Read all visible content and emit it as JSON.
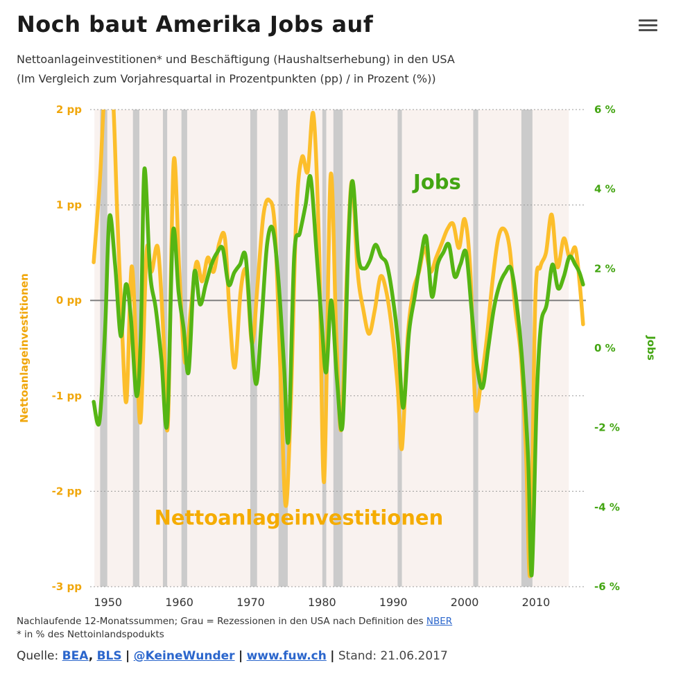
{
  "header": {
    "title": "Noch baut Amerika Jobs auf",
    "subtitle_line1": "Nettoanlageinvestitionen* und Beschäftigung (Haushaltserhebung) in den USA",
    "subtitle_line2": "(Im Vergleich zum Vorjahresquartal in Prozentpunkten (pp) / in Prozent (%))"
  },
  "chart_data": {
    "type": "line",
    "title": "Noch baut Amerika Jobs auf",
    "x_axis": {
      "range": [
        1947.5,
        2017
      ],
      "ticks": [
        1950,
        1960,
        1970,
        1980,
        1990,
        2000,
        2010
      ]
    },
    "y_axis_left": {
      "label": "Nettoanlageinvestitionen",
      "unit": "pp",
      "range": [
        2,
        -3
      ],
      "values": [
        2,
        1,
        0,
        -1,
        -2,
        -3
      ],
      "ticks": [
        "2 pp",
        "1 pp",
        "0 pp",
        "-1 pp",
        "-2 pp",
        "-3 pp"
      ],
      "color": "#F0A60A"
    },
    "y_axis_right": {
      "label": "Jobs",
      "unit": "%",
      "range": [
        6,
        -6
      ],
      "values": [
        6,
        4,
        2,
        0,
        -2,
        -4,
        -6
      ],
      "ticks": [
        "6 %",
        "4 %",
        "2 %",
        "0 %",
        "-2 %",
        "-4 %",
        "-6 %"
      ],
      "color": "#43A512"
    },
    "colors": {
      "investment_line": "#FCBE2B",
      "jobs_line": "#55B514",
      "investment_label": "#F5AC00",
      "jobs_label": "#43A512",
      "recession": "#CBCBCB",
      "plot_bg": "#F9F2EF",
      "grid": "#9A9A9A",
      "zero_line": "#808080"
    },
    "plot_shading": {
      "from": 1948.1,
      "to": 2014.6
    },
    "recessions": [
      [
        1948.9,
        1949.9
      ],
      [
        1953.5,
        1954.4
      ],
      [
        1957.7,
        1958.3
      ],
      [
        1960.3,
        1961.1
      ],
      [
        1969.95,
        1970.9
      ],
      [
        1973.9,
        1975.2
      ],
      [
        1980.05,
        1980.6
      ],
      [
        1981.6,
        1982.9
      ],
      [
        1990.6,
        1991.2
      ],
      [
        2001.2,
        2001.9
      ],
      [
        2007.95,
        2009.5
      ]
    ],
    "series": [
      {
        "name": "Nettoanlageinvestitionen",
        "axis": "left",
        "unit": "pp",
        "color": "#FCBE2B",
        "points": [
          [
            1948.0,
            0.4
          ],
          [
            1948.9,
            1.3
          ],
          [
            1949.6,
            2.25
          ],
          [
            1950.6,
            2.25
          ],
          [
            1951.3,
            0.9
          ],
          [
            1952.0,
            -0.35
          ],
          [
            1952.6,
            -1.05
          ],
          [
            1953.3,
            0.35
          ],
          [
            1954.0,
            -0.55
          ],
          [
            1954.6,
            -1.25
          ],
          [
            1955.4,
            0.5
          ],
          [
            1956.1,
            0.3
          ],
          [
            1957.0,
            0.55
          ],
          [
            1957.8,
            -0.4
          ],
          [
            1958.4,
            -1.3
          ],
          [
            1959.2,
            1.45
          ],
          [
            1960.0,
            0.3
          ],
          [
            1960.8,
            -0.65
          ],
          [
            1961.6,
            -0.1
          ],
          [
            1962.4,
            0.4
          ],
          [
            1963.2,
            0.2
          ],
          [
            1964.0,
            0.45
          ],
          [
            1964.8,
            0.3
          ],
          [
            1965.6,
            0.6
          ],
          [
            1966.4,
            0.65
          ],
          [
            1967.1,
            -0.2
          ],
          [
            1967.8,
            -0.7
          ],
          [
            1968.6,
            0.1
          ],
          [
            1969.4,
            0.3
          ],
          [
            1970.2,
            -0.45
          ],
          [
            1971.0,
            0.2
          ],
          [
            1971.8,
            0.9
          ],
          [
            1972.6,
            1.05
          ],
          [
            1973.4,
            0.75
          ],
          [
            1974.2,
            -0.8
          ],
          [
            1974.9,
            -2.15
          ],
          [
            1975.6,
            -1.15
          ],
          [
            1976.4,
            0.9
          ],
          [
            1977.2,
            1.5
          ],
          [
            1978.0,
            1.35
          ],
          [
            1978.8,
            1.95
          ],
          [
            1979.6,
            0.55
          ],
          [
            1980.3,
            -1.9
          ],
          [
            1981.2,
            1.3
          ],
          [
            1982.0,
            -0.35
          ],
          [
            1982.7,
            -1.35
          ],
          [
            1983.5,
            0.3
          ],
          [
            1984.2,
            1.25
          ],
          [
            1985.0,
            0.3
          ],
          [
            1985.8,
            -0.1
          ],
          [
            1986.6,
            -0.35
          ],
          [
            1987.4,
            -0.1
          ],
          [
            1988.2,
            0.25
          ],
          [
            1989.0,
            0.1
          ],
          [
            1989.8,
            -0.3
          ],
          [
            1990.6,
            -0.9
          ],
          [
            1991.2,
            -1.55
          ],
          [
            1992.0,
            -0.4
          ],
          [
            1992.8,
            0.1
          ],
          [
            1993.6,
            0.3
          ],
          [
            1994.4,
            0.55
          ],
          [
            1995.2,
            0.3
          ],
          [
            1996.0,
            0.45
          ],
          [
            1996.8,
            0.6
          ],
          [
            1997.6,
            0.75
          ],
          [
            1998.4,
            0.8
          ],
          [
            1999.2,
            0.55
          ],
          [
            2000.0,
            0.85
          ],
          [
            2000.8,
            0.3
          ],
          [
            2001.5,
            -1.1
          ],
          [
            2002.3,
            -0.85
          ],
          [
            2003.1,
            -0.4
          ],
          [
            2003.9,
            0.2
          ],
          [
            2004.7,
            0.65
          ],
          [
            2005.5,
            0.75
          ],
          [
            2006.3,
            0.55
          ],
          [
            2007.1,
            -0.1
          ],
          [
            2007.9,
            -0.6
          ],
          [
            2008.6,
            -1.6
          ],
          [
            2009.2,
            -2.85
          ],
          [
            2009.9,
            0.0
          ],
          [
            2010.6,
            0.35
          ],
          [
            2011.4,
            0.5
          ],
          [
            2012.2,
            0.9
          ],
          [
            2013.0,
            0.35
          ],
          [
            2013.9,
            0.65
          ],
          [
            2014.7,
            0.45
          ],
          [
            2015.5,
            0.55
          ],
          [
            2016.1,
            0.2
          ],
          [
            2016.6,
            -0.25
          ]
        ]
      },
      {
        "name": "Jobs",
        "axis": "right",
        "unit": "%",
        "color": "#55B514",
        "points": [
          [
            1948.0,
            -1.35
          ],
          [
            1948.8,
            -1.85
          ],
          [
            1949.6,
            0.5
          ],
          [
            1950.2,
            3.3
          ],
          [
            1951.0,
            2.1
          ],
          [
            1951.8,
            0.3
          ],
          [
            1952.5,
            1.6
          ],
          [
            1953.2,
            0.8
          ],
          [
            1954.0,
            -1.2
          ],
          [
            1954.6,
            0.3
          ],
          [
            1955.1,
            4.5
          ],
          [
            1955.9,
            1.9
          ],
          [
            1956.7,
            1.0
          ],
          [
            1957.5,
            -0.3
          ],
          [
            1958.3,
            -1.9
          ],
          [
            1959.1,
            2.9
          ],
          [
            1959.9,
            1.4
          ],
          [
            1960.6,
            0.5
          ],
          [
            1961.3,
            -0.6
          ],
          [
            1962.1,
            1.9
          ],
          [
            1962.9,
            1.1
          ],
          [
            1963.7,
            1.6
          ],
          [
            1964.5,
            2.1
          ],
          [
            1965.3,
            2.4
          ],
          [
            1966.1,
            2.5
          ],
          [
            1966.9,
            1.6
          ],
          [
            1967.7,
            1.9
          ],
          [
            1968.5,
            2.1
          ],
          [
            1969.3,
            2.3
          ],
          [
            1970.1,
            0.3
          ],
          [
            1970.8,
            -0.9
          ],
          [
            1971.5,
            0.6
          ],
          [
            1972.3,
            2.6
          ],
          [
            1973.1,
            3.0
          ],
          [
            1973.9,
            1.7
          ],
          [
            1974.7,
            -0.5
          ],
          [
            1975.3,
            -2.3
          ],
          [
            1976.1,
            2.3
          ],
          [
            1976.9,
            2.9
          ],
          [
            1977.7,
            3.6
          ],
          [
            1978.4,
            4.3
          ],
          [
            1979.2,
            2.5
          ],
          [
            1980.0,
            0.5
          ],
          [
            1980.6,
            -0.6
          ],
          [
            1981.3,
            1.2
          ],
          [
            1982.1,
            -0.8
          ],
          [
            1982.9,
            -1.9
          ],
          [
            1983.7,
            2.6
          ],
          [
            1984.3,
            4.2
          ],
          [
            1985.1,
            2.3
          ],
          [
            1985.9,
            2.0
          ],
          [
            1986.7,
            2.2
          ],
          [
            1987.5,
            2.6
          ],
          [
            1988.3,
            2.3
          ],
          [
            1989.1,
            2.1
          ],
          [
            1989.9,
            1.3
          ],
          [
            1990.7,
            0.1
          ],
          [
            1991.4,
            -1.5
          ],
          [
            1992.2,
            0.4
          ],
          [
            1993.0,
            1.3
          ],
          [
            1993.8,
            2.2
          ],
          [
            1994.6,
            2.8
          ],
          [
            1995.4,
            1.3
          ],
          [
            1996.2,
            2.1
          ],
          [
            1997.0,
            2.4
          ],
          [
            1997.8,
            2.6
          ],
          [
            1998.6,
            1.8
          ],
          [
            1999.4,
            2.1
          ],
          [
            2000.2,
            2.4
          ],
          [
            2001.0,
            0.9
          ],
          [
            2001.7,
            -0.4
          ],
          [
            2002.5,
            -1.0
          ],
          [
            2003.3,
            0.0
          ],
          [
            2004.1,
            1.0
          ],
          [
            2004.9,
            1.6
          ],
          [
            2005.7,
            1.9
          ],
          [
            2006.5,
            2.0
          ],
          [
            2007.3,
            1.1
          ],
          [
            2008.1,
            -0.4
          ],
          [
            2008.9,
            -2.8
          ],
          [
            2009.4,
            -5.7
          ],
          [
            2010.1,
            -1.3
          ],
          [
            2010.7,
            0.6
          ],
          [
            2011.5,
            1.1
          ],
          [
            2012.3,
            2.1
          ],
          [
            2013.1,
            1.5
          ],
          [
            2013.9,
            1.8
          ],
          [
            2014.7,
            2.3
          ],
          [
            2015.5,
            2.1
          ],
          [
            2016.1,
            1.9
          ],
          [
            2016.6,
            1.6
          ]
        ]
      }
    ],
    "annotations": [
      {
        "text": "Jobs",
        "axis": "right",
        "year": 1992.8,
        "value": 4.0,
        "color": "#43A512",
        "size": 29
      },
      {
        "text": "Nettoanlageinvestitionen",
        "axis": "left",
        "year": 1956.5,
        "value": -2.35,
        "color": "#F5AC00",
        "size": 29
      }
    ]
  },
  "footer": {
    "note_line1_prefix": "Nachlaufende 12-Monatssummen; Grau = Rezessionen in den USA nach Definition des ",
    "note_line1_link": "NBER",
    "note_line2": "* in % des Nettoinlandspodukts",
    "source_prefix": "Quelle:",
    "link_bea": "BEA",
    "link_bls": "BLS",
    "link_twitter": "@KeineWunder",
    "link_fuw": "www.fuw.ch",
    "sep_comma": ",",
    "sep_pipe": "|",
    "stand": "Stand: 21.06.2017"
  }
}
